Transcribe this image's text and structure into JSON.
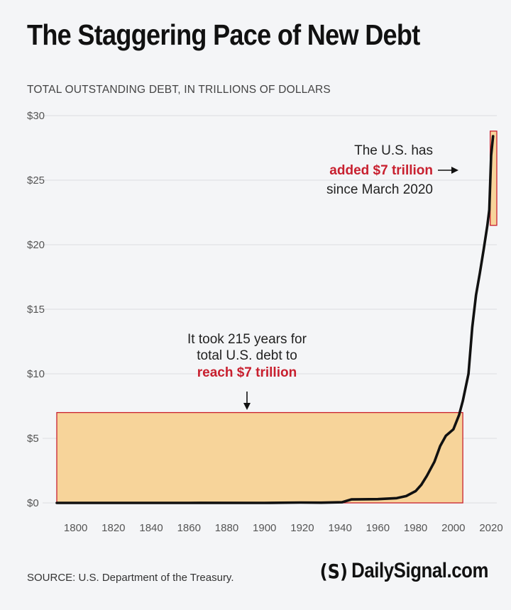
{
  "header": {
    "title": "The Staggering Pace of New Debt",
    "subtitle": "TOTAL OUTSTANDING DEBT, IN TRILLIONS OF DOLLARS"
  },
  "footer": {
    "source": "SOURCE: U.S. Department of the Treasury.",
    "logo_mark": "(S)",
    "logo_text": "DailySignal.com"
  },
  "colors": {
    "line": "#111111",
    "highlight_fill": "#f7d49a",
    "highlight_stroke": "#c8202f",
    "highlight_text": "#c8202f",
    "grid": "#dcdde0",
    "background": "#f4f5f7"
  },
  "chart_data": {
    "type": "line",
    "title": "The Staggering Pace of New Debt",
    "ylabel": "TOTAL OUTSTANDING DEBT, IN TRILLIONS OF DOLLARS",
    "xlabel": "",
    "xlim": [
      1790,
      2023
    ],
    "ylim": [
      0,
      30
    ],
    "grid": "horizontal",
    "x_ticks": [
      1800,
      1820,
      1840,
      1860,
      1880,
      1900,
      1920,
      1940,
      1960,
      1980,
      2000,
      2020
    ],
    "y_ticks": [
      {
        "value": 0,
        "label": "$0"
      },
      {
        "value": 5,
        "label": "$5"
      },
      {
        "value": 10,
        "label": "$10"
      },
      {
        "value": 15,
        "label": "$15"
      },
      {
        "value": 20,
        "label": "$20"
      },
      {
        "value": 25,
        "label": "$25"
      },
      {
        "value": 30,
        "label": "$30"
      }
    ],
    "series": [
      {
        "x": [
          1790,
          1860,
          1866,
          1900,
          1919,
          1930,
          1941,
          1943,
          1946,
          1960,
          1970,
          1975,
          1980,
          1983,
          1986,
          1990,
          1993,
          1996,
          2000,
          2003,
          2005,
          2008,
          2010,
          2012,
          2014,
          2016,
          2018,
          2019,
          2020,
          2021
        ],
        "y": [
          0.0,
          0.0,
          0.003,
          0.002,
          0.027,
          0.016,
          0.05,
          0.14,
          0.27,
          0.29,
          0.37,
          0.53,
          0.91,
          1.4,
          2.1,
          3.2,
          4.4,
          5.2,
          5.7,
          6.8,
          7.9,
          10.0,
          13.6,
          16.1,
          17.8,
          19.6,
          21.5,
          22.7,
          26.9,
          28.4
        ]
      }
    ],
    "highlights": [
      {
        "x_range": [
          1790,
          2005
        ],
        "y_range": [
          0,
          7
        ]
      },
      {
        "x_range": [
          2019.5,
          2023
        ],
        "y_range": [
          21.5,
          28.8
        ]
      }
    ],
    "annotations": [
      {
        "lines": [
          "It took 215 years for",
          "total U.S. debt to",
          "reach $7 trillion"
        ],
        "highlight_line": 2,
        "arrow": "down"
      },
      {
        "lines": [
          "The U.S. has",
          "added $7 trillion",
          "since March 2020"
        ],
        "highlight_line": 1,
        "arrow": "right"
      }
    ]
  }
}
